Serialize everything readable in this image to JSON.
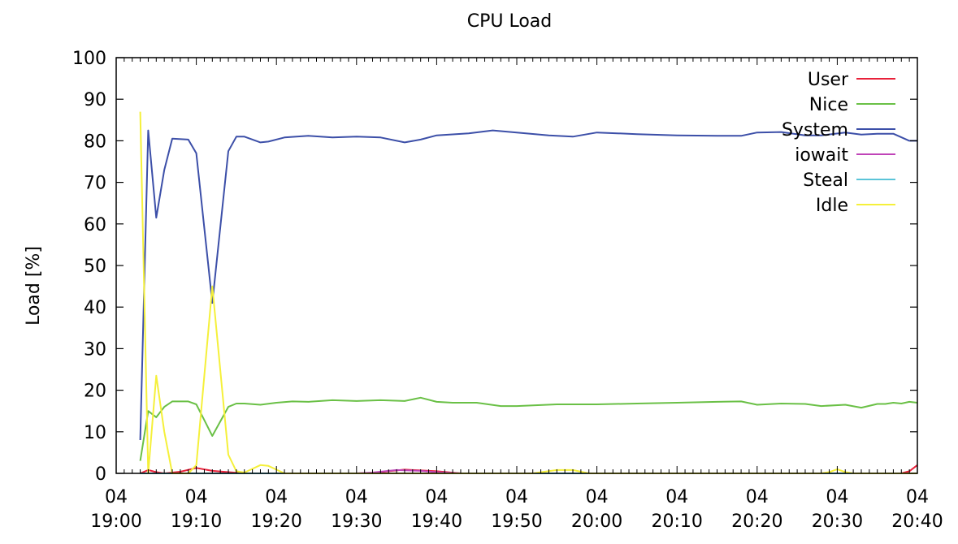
{
  "chart_data": {
    "type": "line",
    "title": "CPU Load",
    "ylabel": "Load [%]",
    "xlabel": "",
    "ylim": [
      0,
      100
    ],
    "yticks": [
      0,
      10,
      20,
      30,
      40,
      50,
      60,
      70,
      80,
      90,
      100
    ],
    "xlim": [
      "19:00",
      "20:40"
    ],
    "xticks": [
      {
        "value": "19:00",
        "line1": "04",
        "line2": "19:00"
      },
      {
        "value": "19:10",
        "line1": "04",
        "line2": "19:10"
      },
      {
        "value": "19:20",
        "line1": "04",
        "line2": "19:20"
      },
      {
        "value": "19:30",
        "line1": "04",
        "line2": "19:30"
      },
      {
        "value": "19:40",
        "line1": "04",
        "line2": "19:40"
      },
      {
        "value": "19:50",
        "line1": "04",
        "line2": "19:50"
      },
      {
        "value": "20:00",
        "line1": "04",
        "line2": "20:00"
      },
      {
        "value": "20:10",
        "line1": "04",
        "line2": "20:10"
      },
      {
        "value": "20:20",
        "line1": "04",
        "line2": "20:20"
      },
      {
        "value": "20:30",
        "line1": "04",
        "line2": "20:30"
      },
      {
        "value": "20:40",
        "line1": "04",
        "line2": "20:40"
      }
    ],
    "legend_position": "top-right",
    "grid": false,
    "series": [
      {
        "name": "User",
        "color": "#e8213a",
        "points": [
          [
            "19:03",
            0
          ],
          [
            "19:04",
            0.8
          ],
          [
            "19:05",
            0.3
          ],
          [
            "19:06",
            0
          ],
          [
            "19:08",
            0.4
          ],
          [
            "19:10",
            1.3
          ],
          [
            "19:12",
            0.6
          ],
          [
            "19:14",
            0.3
          ],
          [
            "19:16",
            0
          ],
          [
            "19:30",
            0
          ],
          [
            "19:32",
            0.1
          ],
          [
            "19:34",
            0.5
          ],
          [
            "19:36",
            0.9
          ],
          [
            "19:38",
            0.7
          ],
          [
            "19:40",
            0.5
          ],
          [
            "19:43",
            0
          ],
          [
            "20:00",
            0
          ],
          [
            "20:20",
            0
          ],
          [
            "20:38",
            0
          ],
          [
            "20:39",
            0.5
          ],
          [
            "20:40",
            2.0
          ]
        ]
      },
      {
        "name": "Nice",
        "color": "#6ac046",
        "points": [
          [
            "19:03",
            3
          ],
          [
            "19:04",
            15
          ],
          [
            "19:05",
            13.5
          ],
          [
            "19:06",
            16
          ],
          [
            "19:07",
            17.3
          ],
          [
            "19:09",
            17.3
          ],
          [
            "19:10",
            16.6
          ],
          [
            "19:12",
            9
          ],
          [
            "19:14",
            16
          ],
          [
            "19:15",
            16.8
          ],
          [
            "19:16",
            16.8
          ],
          [
            "19:18",
            16.5
          ],
          [
            "19:20",
            17
          ],
          [
            "19:22",
            17.3
          ],
          [
            "19:24",
            17.2
          ],
          [
            "19:27",
            17.6
          ],
          [
            "19:30",
            17.4
          ],
          [
            "19:33",
            17.6
          ],
          [
            "19:36",
            17.4
          ],
          [
            "19:38",
            18.2
          ],
          [
            "19:40",
            17.2
          ],
          [
            "19:42",
            17
          ],
          [
            "19:45",
            17
          ],
          [
            "19:48",
            16.2
          ],
          [
            "19:50",
            16.2
          ],
          [
            "19:55",
            16.6
          ],
          [
            "20:00",
            16.6
          ],
          [
            "20:05",
            16.8
          ],
          [
            "20:10",
            17
          ],
          [
            "20:15",
            17.2
          ],
          [
            "20:18",
            17.3
          ],
          [
            "20:20",
            16.5
          ],
          [
            "20:23",
            16.8
          ],
          [
            "20:26",
            16.7
          ],
          [
            "20:28",
            16.2
          ],
          [
            "20:31",
            16.5
          ],
          [
            "20:33",
            15.8
          ],
          [
            "20:35",
            16.7
          ],
          [
            "20:36",
            16.7
          ],
          [
            "20:37",
            17
          ],
          [
            "20:38",
            16.8
          ],
          [
            "20:39",
            17.2
          ],
          [
            "20:40",
            17
          ]
        ]
      },
      {
        "name": "System",
        "color": "#3c4fa8",
        "points": [
          [
            "19:03",
            8
          ],
          [
            "19:04",
            82.5
          ],
          [
            "19:05",
            61.5
          ],
          [
            "19:06",
            73
          ],
          [
            "19:07",
            80.5
          ],
          [
            "19:09",
            80.3
          ],
          [
            "19:10",
            77
          ],
          [
            "19:12",
            41
          ],
          [
            "19:14",
            77.5
          ],
          [
            "19:15",
            81
          ],
          [
            "19:16",
            81
          ],
          [
            "19:18",
            79.6
          ],
          [
            "19:19",
            79.8
          ],
          [
            "19:21",
            80.8
          ],
          [
            "19:24",
            81.2
          ],
          [
            "19:27",
            80.8
          ],
          [
            "19:30",
            81
          ],
          [
            "19:33",
            80.8
          ],
          [
            "19:36",
            79.6
          ],
          [
            "19:38",
            80.3
          ],
          [
            "19:40",
            81.3
          ],
          [
            "19:44",
            81.8
          ],
          [
            "19:47",
            82.5
          ],
          [
            "19:50",
            82
          ],
          [
            "19:54",
            81.3
          ],
          [
            "19:57",
            81
          ],
          [
            "20:00",
            82
          ],
          [
            "20:05",
            81.6
          ],
          [
            "20:10",
            81.3
          ],
          [
            "20:15",
            81.2
          ],
          [
            "20:18",
            81.2
          ],
          [
            "20:20",
            82
          ],
          [
            "20:23",
            82.1
          ],
          [
            "20:26",
            81.3
          ],
          [
            "20:28",
            81.3
          ],
          [
            "20:31",
            82
          ],
          [
            "20:33",
            81.5
          ],
          [
            "20:35",
            81.7
          ],
          [
            "20:37",
            81.7
          ],
          [
            "20:39",
            80
          ],
          [
            "20:40",
            80
          ]
        ]
      },
      {
        "name": "iowait",
        "color": "#c044b8",
        "points": [
          [
            "19:03",
            0
          ],
          [
            "19:30",
            0
          ],
          [
            "19:32",
            0.2
          ],
          [
            "19:35",
            0.8
          ],
          [
            "19:38",
            0.6
          ],
          [
            "19:40",
            0.3
          ],
          [
            "19:43",
            0
          ],
          [
            "20:40",
            0
          ]
        ]
      },
      {
        "name": "Steal",
        "color": "#5bc4d8",
        "points": [
          [
            "19:03",
            0
          ],
          [
            "20:40",
            0
          ]
        ]
      },
      {
        "name": "Idle",
        "color": "#f5f03a",
        "points": [
          [
            "19:03",
            87
          ],
          [
            "19:04",
            0
          ],
          [
            "19:05",
            23.5
          ],
          [
            "19:06",
            10
          ],
          [
            "19:07",
            0
          ],
          [
            "19:09",
            0
          ],
          [
            "19:10",
            2
          ],
          [
            "19:12",
            45
          ],
          [
            "19:14",
            4.5
          ],
          [
            "19:15",
            0.5
          ],
          [
            "19:16",
            0.2
          ],
          [
            "19:18",
            2
          ],
          [
            "19:19",
            1.8
          ],
          [
            "19:21",
            0
          ],
          [
            "19:52",
            0
          ],
          [
            "19:55",
            0.8
          ],
          [
            "19:57",
            0.8
          ],
          [
            "19:59",
            0
          ],
          [
            "20:28",
            0
          ],
          [
            "20:29",
            0.3
          ],
          [
            "20:30",
            1
          ],
          [
            "20:31",
            0.3
          ],
          [
            "20:32",
            0
          ],
          [
            "20:40",
            0
          ]
        ]
      }
    ]
  }
}
